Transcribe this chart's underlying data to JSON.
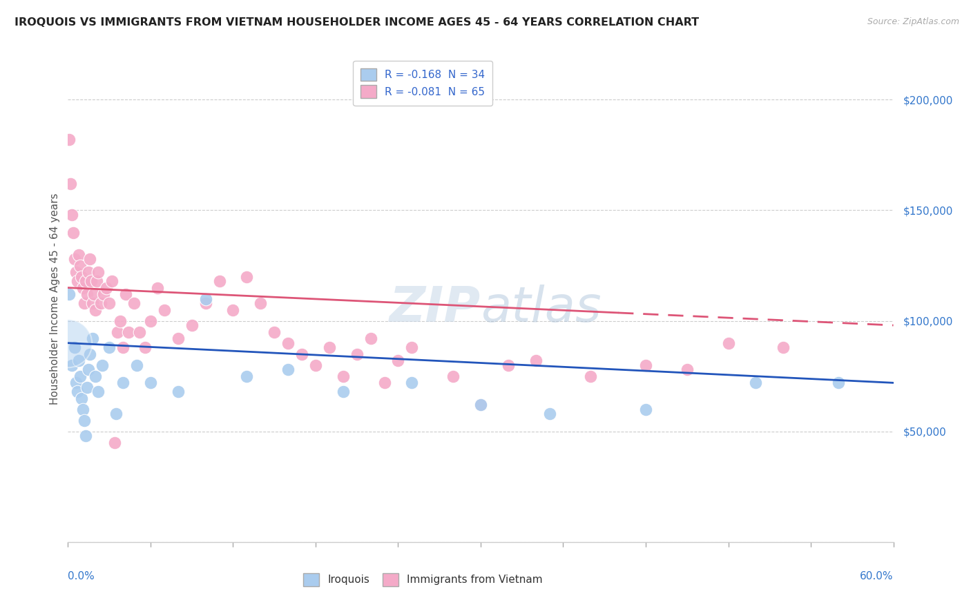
{
  "title": "IROQUOIS VS IMMIGRANTS FROM VIETNAM HOUSEHOLDER INCOME AGES 45 - 64 YEARS CORRELATION CHART",
  "source": "Source: ZipAtlas.com",
  "ylabel": "Householder Income Ages 45 - 64 years",
  "legend_entries": [
    {
      "label": "R = -0.168  N = 34"
    },
    {
      "label": "R = -0.081  N = 65"
    }
  ],
  "legend_labels_bottom": [
    "Iroquois",
    "Immigrants from Vietnam"
  ],
  "xlim": [
    0.0,
    0.6
  ],
  "ylim": [
    0,
    220000
  ],
  "yticks": [
    0,
    50000,
    100000,
    150000,
    200000
  ],
  "ytick_labels": [
    "",
    "$50,000",
    "$100,000",
    "$150,000",
    "$200,000"
  ],
  "bg_color": "#ffffff",
  "grid_color": "#cccccc",
  "blue_color": "#aaccee",
  "pink_color": "#f4aac8",
  "blue_line_color": "#2255bb",
  "pink_line_color": "#dd5577",
  "blue_line_y0": 90000,
  "blue_line_y1": 72000,
  "pink_line_y0": 115000,
  "pink_line_y1": 98000,
  "iroquois_points": [
    [
      0.001,
      112000
    ],
    [
      0.003,
      80000
    ],
    [
      0.005,
      88000
    ],
    [
      0.006,
      72000
    ],
    [
      0.007,
      68000
    ],
    [
      0.008,
      82000
    ],
    [
      0.009,
      75000
    ],
    [
      0.01,
      65000
    ],
    [
      0.011,
      60000
    ],
    [
      0.012,
      55000
    ],
    [
      0.013,
      48000
    ],
    [
      0.014,
      70000
    ],
    [
      0.015,
      78000
    ],
    [
      0.016,
      85000
    ],
    [
      0.018,
      92000
    ],
    [
      0.02,
      75000
    ],
    [
      0.022,
      68000
    ],
    [
      0.025,
      80000
    ],
    [
      0.03,
      88000
    ],
    [
      0.035,
      58000
    ],
    [
      0.04,
      72000
    ],
    [
      0.05,
      80000
    ],
    [
      0.06,
      72000
    ],
    [
      0.08,
      68000
    ],
    [
      0.1,
      110000
    ],
    [
      0.13,
      75000
    ],
    [
      0.16,
      78000
    ],
    [
      0.2,
      68000
    ],
    [
      0.25,
      72000
    ],
    [
      0.3,
      62000
    ],
    [
      0.35,
      58000
    ],
    [
      0.42,
      60000
    ],
    [
      0.5,
      72000
    ],
    [
      0.56,
      72000
    ]
  ],
  "vietnam_points": [
    [
      0.001,
      182000
    ],
    [
      0.002,
      162000
    ],
    [
      0.003,
      148000
    ],
    [
      0.004,
      140000
    ],
    [
      0.005,
      128000
    ],
    [
      0.006,
      122000
    ],
    [
      0.007,
      118000
    ],
    [
      0.008,
      130000
    ],
    [
      0.009,
      125000
    ],
    [
      0.01,
      120000
    ],
    [
      0.011,
      115000
    ],
    [
      0.012,
      108000
    ],
    [
      0.013,
      118000
    ],
    [
      0.014,
      112000
    ],
    [
      0.015,
      122000
    ],
    [
      0.016,
      128000
    ],
    [
      0.017,
      118000
    ],
    [
      0.018,
      108000
    ],
    [
      0.019,
      112000
    ],
    [
      0.02,
      105000
    ],
    [
      0.021,
      118000
    ],
    [
      0.022,
      122000
    ],
    [
      0.024,
      108000
    ],
    [
      0.026,
      112000
    ],
    [
      0.028,
      115000
    ],
    [
      0.03,
      108000
    ],
    [
      0.032,
      118000
    ],
    [
      0.034,
      45000
    ],
    [
      0.036,
      95000
    ],
    [
      0.038,
      100000
    ],
    [
      0.04,
      88000
    ],
    [
      0.042,
      112000
    ],
    [
      0.044,
      95000
    ],
    [
      0.048,
      108000
    ],
    [
      0.052,
      95000
    ],
    [
      0.056,
      88000
    ],
    [
      0.06,
      100000
    ],
    [
      0.065,
      115000
    ],
    [
      0.07,
      105000
    ],
    [
      0.08,
      92000
    ],
    [
      0.09,
      98000
    ],
    [
      0.1,
      108000
    ],
    [
      0.11,
      118000
    ],
    [
      0.12,
      105000
    ],
    [
      0.13,
      120000
    ],
    [
      0.14,
      108000
    ],
    [
      0.15,
      95000
    ],
    [
      0.16,
      90000
    ],
    [
      0.17,
      85000
    ],
    [
      0.18,
      80000
    ],
    [
      0.19,
      88000
    ],
    [
      0.2,
      75000
    ],
    [
      0.21,
      85000
    ],
    [
      0.22,
      92000
    ],
    [
      0.23,
      72000
    ],
    [
      0.24,
      82000
    ],
    [
      0.25,
      88000
    ],
    [
      0.28,
      75000
    ],
    [
      0.3,
      62000
    ],
    [
      0.32,
      80000
    ],
    [
      0.34,
      82000
    ],
    [
      0.38,
      75000
    ],
    [
      0.42,
      80000
    ],
    [
      0.45,
      78000
    ],
    [
      0.48,
      90000
    ],
    [
      0.52,
      88000
    ]
  ]
}
